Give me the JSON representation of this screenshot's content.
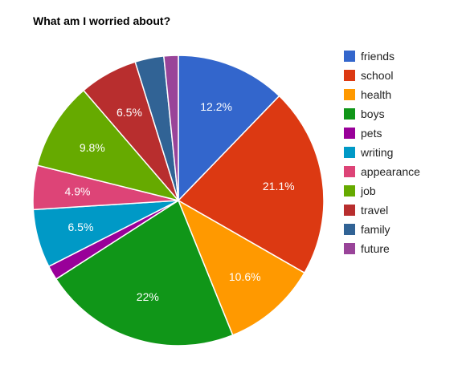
{
  "chart_data": {
    "type": "pie",
    "title": "What am I worried about?",
    "legend_position": "right",
    "start_angle_degrees": 0,
    "slices": [
      {
        "label": "friends",
        "value": 12.2,
        "value_label": "12.2%",
        "color": "#3366cc"
      },
      {
        "label": "school",
        "value": 21.1,
        "value_label": "21.1%",
        "color": "#dc3912"
      },
      {
        "label": "health",
        "value": 10.6,
        "value_label": "10.6%",
        "color": "#ff9900"
      },
      {
        "label": "boys",
        "value": 22.0,
        "value_label": "22%",
        "color": "#109618"
      },
      {
        "label": "pets",
        "value": 1.6,
        "value_label": "",
        "color": "#990099"
      },
      {
        "label": "writing",
        "value": 6.5,
        "value_label": "6.5%",
        "color": "#0099c6"
      },
      {
        "label": "appearance",
        "value": 4.9,
        "value_label": "4.9%",
        "color": "#dd4477"
      },
      {
        "label": "job",
        "value": 9.8,
        "value_label": "9.8%",
        "color": "#66aa00"
      },
      {
        "label": "travel",
        "value": 6.5,
        "value_label": "6.5%",
        "color": "#b82e2e"
      },
      {
        "label": "family",
        "value": 3.2,
        "value_label": "",
        "color": "#316395"
      },
      {
        "label": "future",
        "value": 1.6,
        "value_label": "",
        "color": "#994499"
      }
    ]
  }
}
